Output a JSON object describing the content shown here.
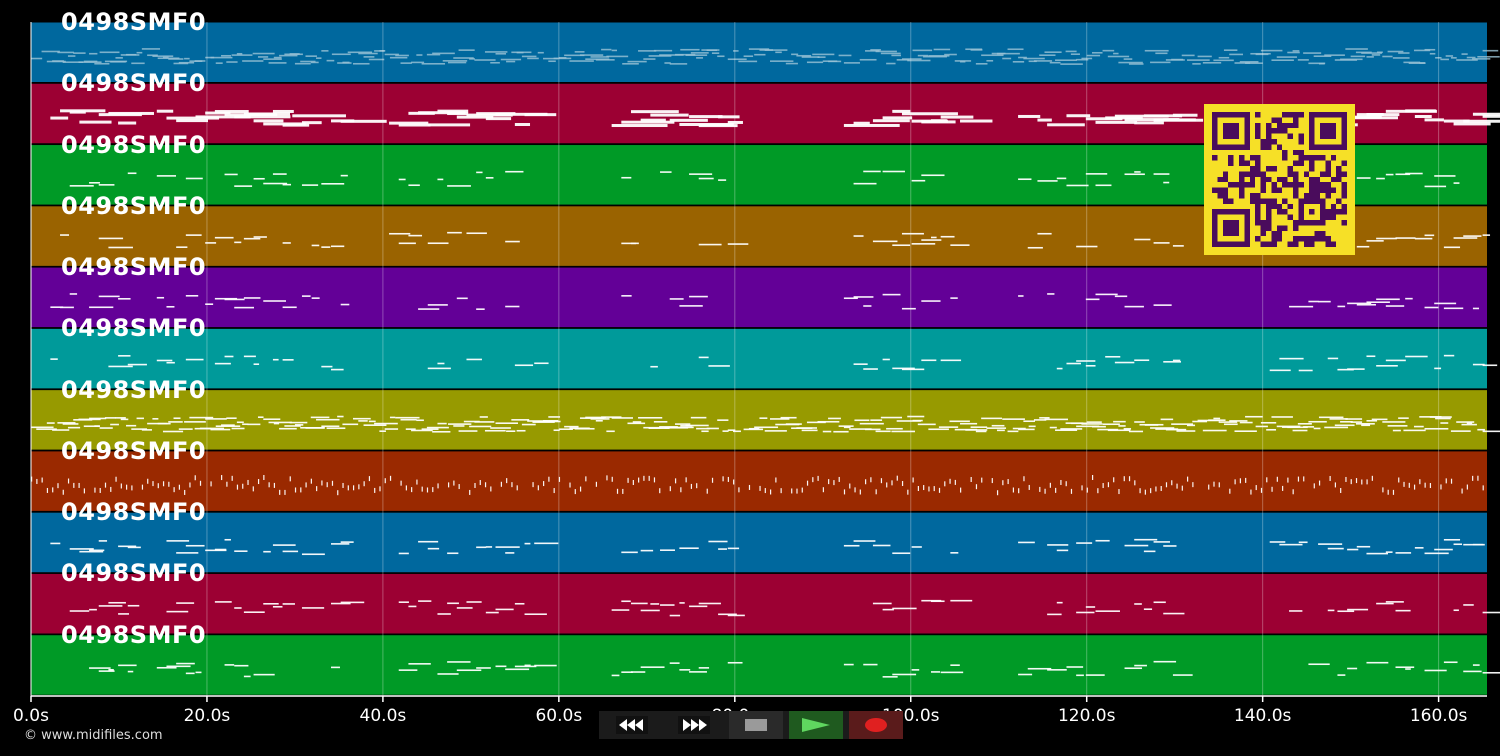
{
  "tracks": [
    {
      "label": "0498SMF0",
      "color": "#00689e",
      "density": 0.9,
      "style": "dots"
    },
    {
      "label": "0498SMF0",
      "color": "#9c0033",
      "density": 0.8,
      "style": "chunky"
    },
    {
      "label": "0498SMF0",
      "color": "#009a26",
      "density": 0.5,
      "style": "normal"
    },
    {
      "label": "0498SMF0",
      "color": "#9a6300",
      "density": 0.45,
      "style": "normal"
    },
    {
      "label": "0498SMF0",
      "color": "#630097",
      "density": 0.45,
      "style": "normal"
    },
    {
      "label": "0498SMF0",
      "color": "#009a9a",
      "density": 0.5,
      "style": "normal"
    },
    {
      "label": "0498SMF0",
      "color": "#979a00",
      "density": 0.95,
      "style": "dense"
    },
    {
      "label": "0498SMF0",
      "color": "#9a2900",
      "density": 0.9,
      "style": "vdots"
    },
    {
      "label": "0498SMF0",
      "color": "#00689e",
      "density": 0.6,
      "style": "normal"
    },
    {
      "label": "0498SMF0",
      "color": "#9c0033",
      "density": 0.6,
      "style": "normal"
    },
    {
      "label": "0498SMF0",
      "color": "#009a26",
      "density": 0.6,
      "style": "normal"
    }
  ],
  "time_axis": {
    "max_seconds": 165.5,
    "ticks": [
      {
        "value": 0,
        "label": "0.0s"
      },
      {
        "value": 20,
        "label": "20.0s"
      },
      {
        "value": 40,
        "label": "40.0s"
      },
      {
        "value": 60,
        "label": "60.0s"
      },
      {
        "value": 80,
        "label": "80.0s"
      },
      {
        "value": 100,
        "label": "100.0s"
      },
      {
        "value": 120,
        "label": "120.0s"
      },
      {
        "value": 140,
        "label": "140.0s"
      },
      {
        "value": 160,
        "label": "160.0s"
      }
    ]
  },
  "footer": {
    "copyright": "© www.midifiles.com"
  },
  "controls": {
    "rewind": {
      "icon": "rewind-icon",
      "color": "#ffffff"
    },
    "forward": {
      "icon": "fast-forward-icon",
      "color": "#ffffff"
    },
    "stop": {
      "icon": "stop-icon",
      "color": "#9a9a9a"
    },
    "play": {
      "icon": "play-icon",
      "color": "#5fd65f",
      "bg": "#1f5a1f"
    },
    "record": {
      "icon": "record-icon",
      "color": "#e02020",
      "bg": "#5a1b1b"
    }
  },
  "qr_code": {
    "icon": "qr-code-icon",
    "fg": "#4a0c5c",
    "bg": "#f6e027"
  }
}
